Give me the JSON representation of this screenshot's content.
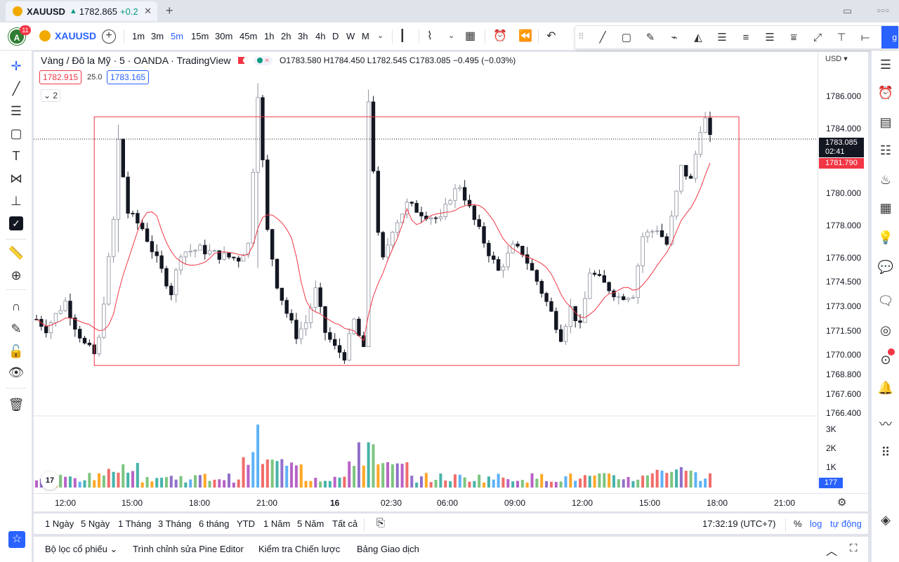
{
  "tab": {
    "symbol": "XAUUSD",
    "arrow": "▲",
    "price": "1782.865",
    "change": "+0.2",
    "close": "✕",
    "new_tab": "+"
  },
  "window": {
    "sidebar_icon": "▭",
    "more": "○○○"
  },
  "toolbar": {
    "avatar_letter": "A",
    "badge_count": "11",
    "symbol": "XAUUSD",
    "add": "+",
    "intervals": [
      "1m",
      "3m",
      "5m",
      "15m",
      "30m",
      "45m",
      "1h",
      "2h",
      "3h",
      "4h",
      "D",
      "W",
      "M"
    ],
    "active_interval": "5m"
  },
  "legend": {
    "title": "Vàng / Đô la Mỹ · 5 · OANDA · TradingView",
    "ohlc": "O1783.580  H1784.450  L1782.545  C1783.085  −0.495 (−0.03%)",
    "sell_price": "1782.915",
    "spread": "25.0",
    "buy_price": "1783.165",
    "collapsed_count": "2",
    "currency": "USD"
  },
  "price_labels": {
    "current": "1783.085",
    "countdown": "02:41",
    "sma": "1781.790",
    "volume_last": "177"
  },
  "yaxis_labels": [
    "1786.000",
    "1784.000",
    "1780.000",
    "1778.000",
    "1776.000",
    "1774.500",
    "1773.000",
    "1771.500",
    "1770.000",
    "1768.800",
    "1767.600",
    "1766.400"
  ],
  "volume_axis_labels": [
    "3K",
    "2K",
    "1K"
  ],
  "xaxis_labels": [
    "12:00",
    "15:00",
    "18:00",
    "21:00",
    "16",
    "02:30",
    "06:00",
    "09:00",
    "12:00",
    "15:00",
    "18:00",
    "21:00"
  ],
  "ranges": [
    "1 Ngày",
    "5 Ngày",
    "1 Tháng",
    "3 Tháng",
    "6 tháng",
    "YTD",
    "1 Năm",
    "5 Năm",
    "Tất cả"
  ],
  "clock": "17:32:19 (UTC+7)",
  "scale_options": {
    "percent": "%",
    "log": "log",
    "auto": "tự động"
  },
  "bottom_tabs": [
    "Bộ lọc cổ phiếu",
    "Trình chỉnh sửa Pine Editor",
    "Kiểm tra Chiến lược",
    "Bảng Giao dịch"
  ],
  "colors": {
    "up": "#089981",
    "down": "#131722",
    "candle_up_fill": "#ffffff",
    "sma": "#f23645",
    "box": "#f23645",
    "accent": "#2962ff"
  },
  "chart_data": {
    "type": "candlestick",
    "symbol": "XAUUSD",
    "timeframe": "5",
    "ylim": [
      1766.0,
      1786.8
    ],
    "box": {
      "price_high": 1784.5,
      "price_low": 1768.9
    },
    "price_path": [
      [
        0,
        1771.8
      ],
      [
        2,
        1771.2
      ],
      [
        5,
        1772.5
      ],
      [
        6,
        1772.9
      ],
      [
        8,
        1771.4
      ],
      [
        10,
        1770.2
      ],
      [
        12,
        1769.6
      ],
      [
        13,
        1770.5
      ],
      [
        16,
        1778.0
      ],
      [
        17,
        1783.0
      ],
      [
        19,
        1778.5
      ],
      [
        22,
        1777.5
      ],
      [
        25,
        1775.5
      ],
      [
        28,
        1773.5
      ],
      [
        30,
        1776.0
      ],
      [
        34,
        1776.2
      ],
      [
        38,
        1775.8
      ],
      [
        42,
        1775.6
      ],
      [
        44,
        1776.5
      ],
      [
        46,
        1786.0
      ],
      [
        48,
        1777.3
      ],
      [
        50,
        1774.0
      ],
      [
        52,
        1772.2
      ],
      [
        54,
        1770.8
      ],
      [
        56,
        1771.6
      ],
      [
        58,
        1773.6
      ],
      [
        60,
        1771.0
      ],
      [
        62,
        1770.0
      ],
      [
        64,
        1769.5
      ],
      [
        66,
        1771.7
      ],
      [
        68,
        1769.8
      ],
      [
        69,
        1785.5
      ],
      [
        71,
        1777.0
      ],
      [
        72,
        1775.5
      ],
      [
        74,
        1777.5
      ],
      [
        77,
        1779.0
      ],
      [
        80,
        1778.5
      ],
      [
        84,
        1778.0
      ],
      [
        86,
        1779.5
      ],
      [
        88,
        1780.2
      ],
      [
        91,
        1778.0
      ],
      [
        94,
        1776.0
      ],
      [
        96,
        1774.8
      ],
      [
        99,
        1776.3
      ],
      [
        101,
        1776.0
      ],
      [
        104,
        1774.2
      ],
      [
        107,
        1772.2
      ],
      [
        109,
        1770.7
      ],
      [
        111,
        1772.5
      ],
      [
        113,
        1771.3
      ],
      [
        115,
        1774.8
      ],
      [
        118,
        1774.0
      ],
      [
        121,
        1773.2
      ],
      [
        124,
        1773.4
      ],
      [
        126,
        1777.0
      ],
      [
        129,
        1777.5
      ],
      [
        131,
        1776.5
      ],
      [
        134,
        1781.3
      ],
      [
        136,
        1780.5
      ],
      [
        138,
        1783.8
      ],
      [
        139,
        1784.3
      ],
      [
        140,
        1783.1
      ]
    ],
    "candle_count": 141,
    "moving_average": "SMA",
    "volume_ylim": [
      0,
      3500
    ],
    "volume_high_spikes": [
      [
        46,
        3200
      ],
      [
        69,
        2300
      ],
      [
        70,
        2200
      ],
      [
        67,
        2300
      ],
      [
        45,
        1800
      ]
    ]
  }
}
